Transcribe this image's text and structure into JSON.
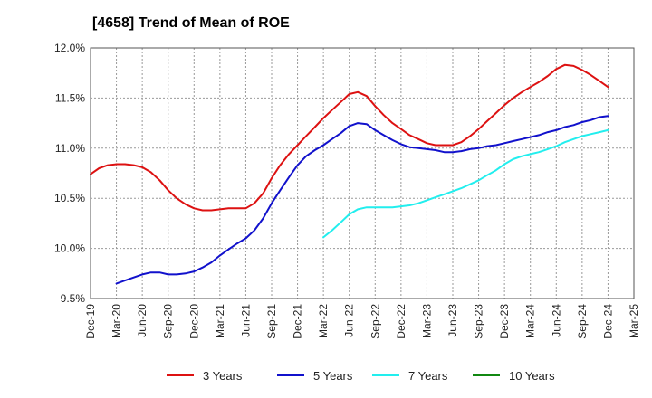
{
  "chart_data": {
    "type": "line",
    "title": "[4658]  Trend of Mean of ROE",
    "xlabel": "",
    "ylabel": "",
    "ylim": [
      9.5,
      12.0
    ],
    "yticks": [
      9.5,
      10.0,
      10.5,
      11.0,
      11.5,
      12.0
    ],
    "ytick_labels": [
      "9.5%",
      "10.0%",
      "10.5%",
      "11.0%",
      "11.5%",
      "12.0%"
    ],
    "x_categories": [
      "Dec-19",
      "Mar-20",
      "Jun-20",
      "Sep-20",
      "Dec-20",
      "Mar-21",
      "Jun-21",
      "Sep-21",
      "Dec-21",
      "Mar-22",
      "Jun-22",
      "Sep-22",
      "Dec-22",
      "Mar-23",
      "Jun-23",
      "Sep-23",
      "Dec-23",
      "Mar-24",
      "Jun-24",
      "Sep-24",
      "Dec-24",
      "Mar-25"
    ],
    "grid": true,
    "legend_position": "bottom",
    "series": [
      {
        "name": "3 Years",
        "color": "#dd1111",
        "x": [
          0,
          0.33,
          0.67,
          1,
          1.33,
          1.67,
          2,
          2.33,
          2.67,
          3,
          3.33,
          3.67,
          4,
          4.33,
          4.67,
          5,
          5.33,
          5.67,
          6,
          6.33,
          6.67,
          7,
          7.33,
          7.67,
          8,
          8.33,
          8.67,
          9,
          9.33,
          9.67,
          10,
          10.33,
          10.67,
          11,
          11.33,
          11.67,
          12,
          12.33,
          12.67,
          13,
          13.33,
          13.67,
          14,
          14.33,
          14.67,
          15,
          15.33,
          15.67,
          16,
          16.33,
          16.67,
          17,
          17.33,
          17.67,
          18,
          18.33,
          18.67,
          19,
          19.33,
          19.67,
          20
        ],
        "values": [
          10.74,
          10.8,
          10.83,
          10.84,
          10.84,
          10.83,
          10.81,
          10.76,
          10.68,
          10.58,
          10.5,
          10.44,
          10.4,
          10.38,
          10.38,
          10.39,
          10.4,
          10.4,
          10.4,
          10.45,
          10.55,
          10.7,
          10.83,
          10.94,
          11.03,
          11.12,
          11.21,
          11.3,
          11.38,
          11.46,
          11.54,
          11.56,
          11.52,
          11.42,
          11.33,
          11.25,
          11.19,
          11.13,
          11.09,
          11.05,
          11.03,
          11.03,
          11.03,
          11.06,
          11.12,
          11.19,
          11.27,
          11.35,
          11.43,
          11.5,
          11.56,
          11.61,
          11.66,
          11.72,
          11.79,
          11.83,
          11.82,
          11.78,
          11.73,
          11.67,
          11.61
        ]
      },
      {
        "name": "5 Years",
        "color": "#1111cc",
        "x": [
          1,
          1.33,
          1.67,
          2,
          2.33,
          2.67,
          3,
          3.33,
          3.67,
          4,
          4.33,
          4.67,
          5,
          5.33,
          5.67,
          6,
          6.33,
          6.67,
          7,
          7.33,
          7.67,
          8,
          8.33,
          8.67,
          9,
          9.33,
          9.67,
          10,
          10.33,
          10.67,
          11,
          11.33,
          11.67,
          12,
          12.33,
          12.67,
          13,
          13.33,
          13.67,
          14,
          14.33,
          14.67,
          15,
          15.33,
          15.67,
          16,
          16.33,
          16.67,
          17,
          17.33,
          17.67,
          18,
          18.33,
          18.67,
          19,
          19.33,
          19.67,
          20
        ],
        "values": [
          9.65,
          9.68,
          9.71,
          9.74,
          9.76,
          9.76,
          9.74,
          9.74,
          9.75,
          9.77,
          9.81,
          9.86,
          9.93,
          9.99,
          10.05,
          10.1,
          10.18,
          10.3,
          10.45,
          10.58,
          10.71,
          10.83,
          10.92,
          10.98,
          11.03,
          11.09,
          11.15,
          11.22,
          11.25,
          11.24,
          11.18,
          11.13,
          11.08,
          11.04,
          11.01,
          11.0,
          10.99,
          10.98,
          10.96,
          10.96,
          10.97,
          10.99,
          11.0,
          11.02,
          11.03,
          11.05,
          11.07,
          11.09,
          11.11,
          11.13,
          11.16,
          11.18,
          11.21,
          11.23,
          11.26,
          11.28,
          11.31,
          11.32
        ]
      },
      {
        "name": "7 Years",
        "color": "#22eeee",
        "x": [
          9,
          9.33,
          9.67,
          10,
          10.33,
          10.67,
          11,
          11.33,
          11.67,
          12,
          12.33,
          12.67,
          13,
          13.33,
          13.67,
          14,
          14.33,
          14.67,
          15,
          15.33,
          15.67,
          16,
          16.33,
          16.67,
          17,
          17.33,
          17.67,
          18,
          18.33,
          18.67,
          19,
          19.33,
          19.67,
          20
        ],
        "values": [
          10.11,
          10.18,
          10.26,
          10.34,
          10.39,
          10.41,
          10.41,
          10.41,
          10.41,
          10.42,
          10.43,
          10.45,
          10.48,
          10.51,
          10.54,
          10.57,
          10.6,
          10.64,
          10.68,
          10.73,
          10.78,
          10.84,
          10.89,
          10.92,
          10.94,
          10.96,
          10.99,
          11.02,
          11.06,
          11.09,
          11.12,
          11.14,
          11.16,
          11.18
        ]
      },
      {
        "name": "10 Years",
        "color": "#118811",
        "x": [],
        "values": []
      }
    ]
  }
}
